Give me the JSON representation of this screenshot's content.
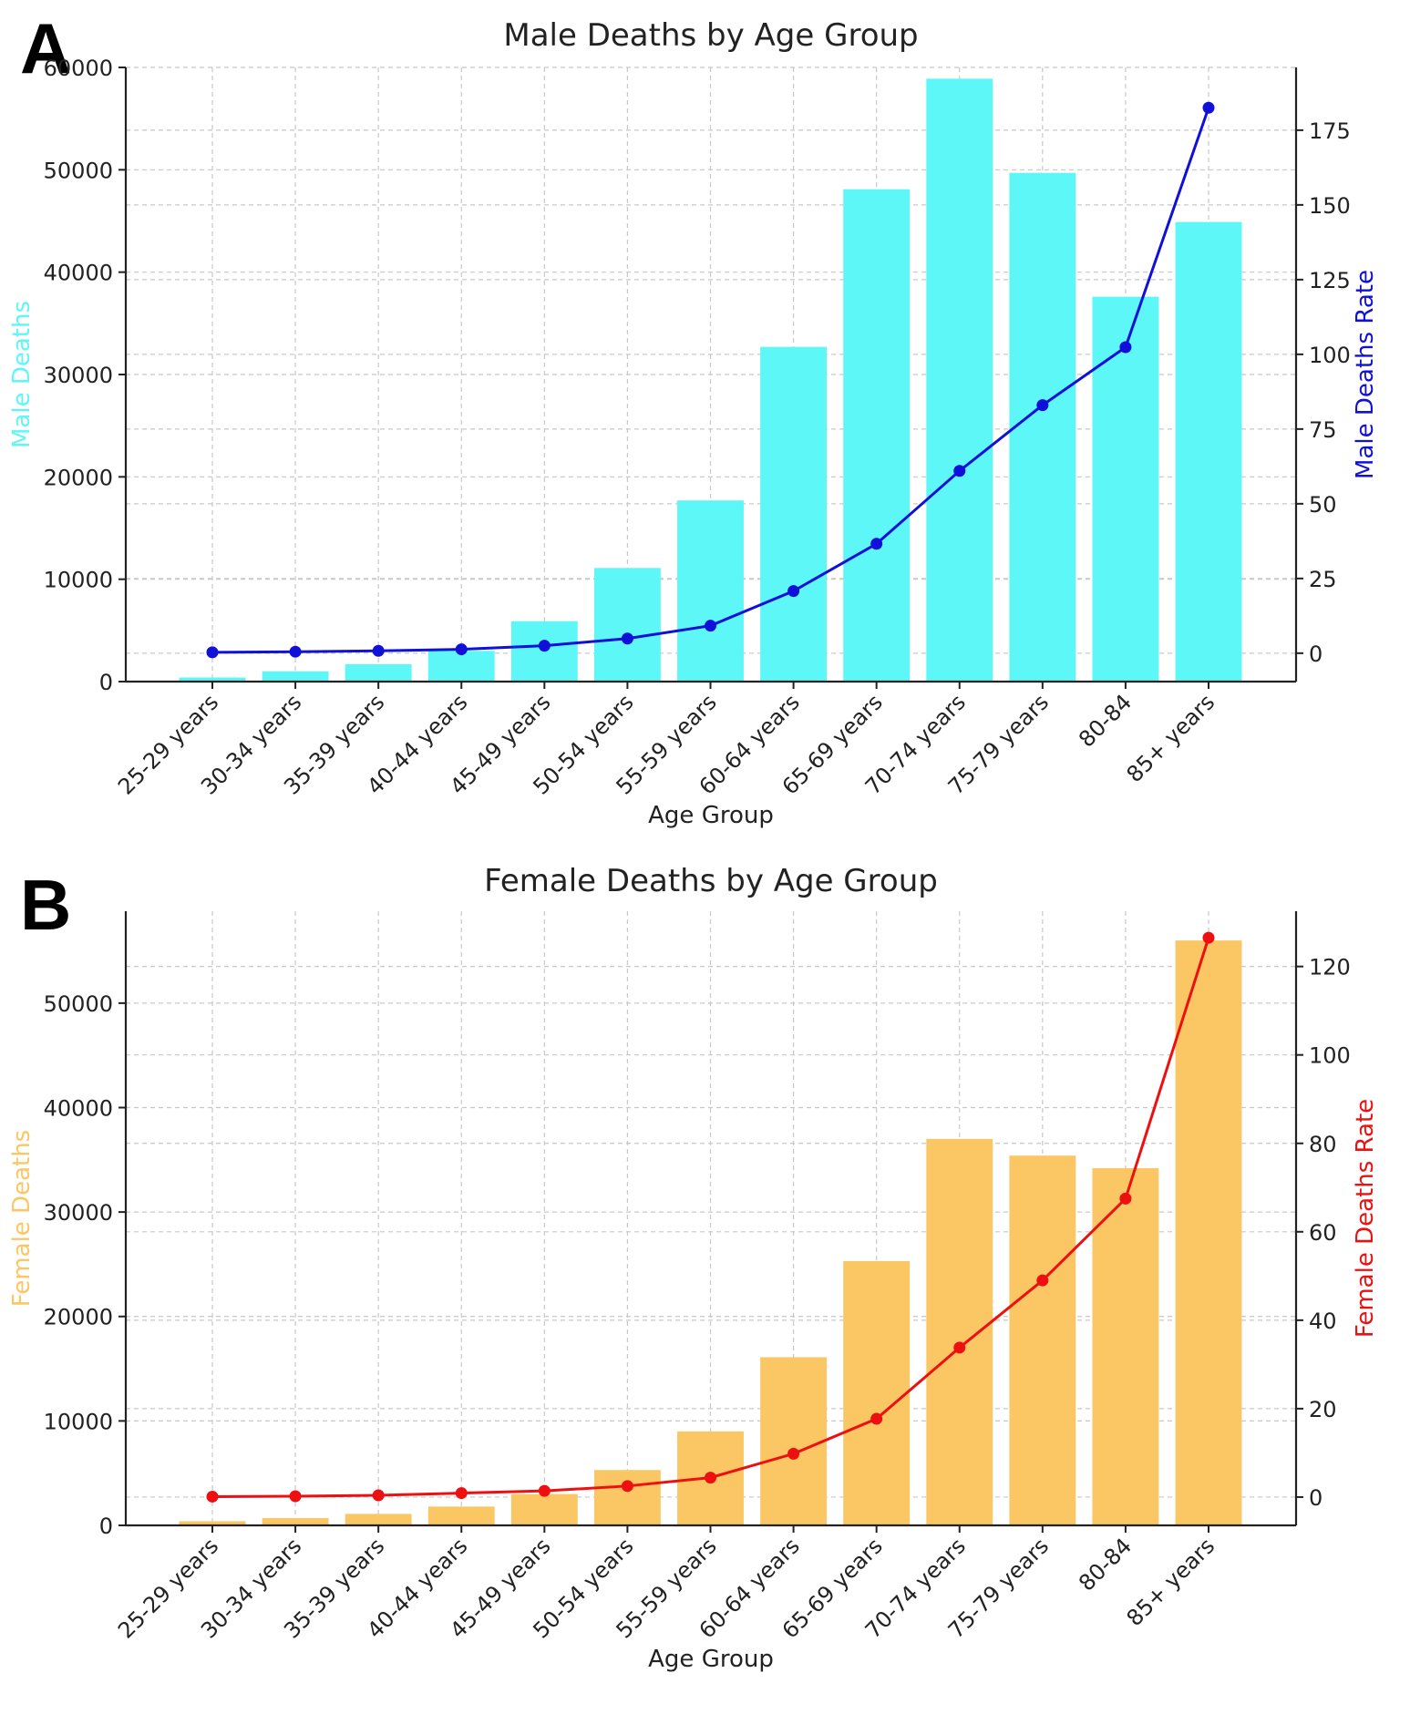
{
  "colors": {
    "male_bar": "#5ef7f7",
    "male_line": "#1010d8",
    "female_bar": "#fbc764",
    "female_line": "#ee1010"
  },
  "chart_data": [
    {
      "panel_label": "A",
      "type": "bar+line",
      "title": "Male Deaths by Age Group",
      "xlabel": "Age Group",
      "ylabel_left": "Male Deaths",
      "ylabel_right": "Male Deaths Rate",
      "categories": [
        "25-29 years",
        "30-34 years",
        "35-39 years",
        "40-44 years",
        "45-49 years",
        "50-54 years",
        "55-59 years",
        "60-64 years",
        "65-69 years",
        "70-74 years",
        "75-79 years",
        "80-84",
        "85+ years"
      ],
      "series": [
        {
          "name": "Male Deaths",
          "type": "bar",
          "axis": "left",
          "values": [
            400,
            1000,
            1700,
            3000,
            5900,
            11100,
            17700,
            32700,
            48100,
            58900,
            49700,
            37600,
            44900
          ]
        },
        {
          "name": "Male Deaths Rate",
          "type": "line",
          "axis": "right",
          "values": [
            0.3,
            0.5,
            0.8,
            1.3,
            2.5,
            4.9,
            9.2,
            20.8,
            36.6,
            61.0,
            83.0,
            102.4,
            182.5
          ]
        }
      ],
      "ylim_left": [
        0,
        60000
      ],
      "yticks_left": [
        0,
        10000,
        20000,
        30000,
        40000,
        50000,
        60000
      ],
      "ylim_right": [
        -9.5,
        196
      ],
      "yticks_right": [
        0,
        25,
        50,
        75,
        100,
        125,
        150,
        175
      ],
      "grid": true
    },
    {
      "panel_label": "B",
      "type": "bar+line",
      "title": "Female Deaths by Age Group",
      "xlabel": "Age Group",
      "ylabel_left": "Female Deaths",
      "ylabel_right": "Female Deaths Rate",
      "categories": [
        "25-29 years",
        "30-34 years",
        "35-39 years",
        "40-44 years",
        "45-49 years",
        "50-54 years",
        "55-59 years",
        "60-64 years",
        "65-69 years",
        "70-74 years",
        "75-79 years",
        "80-84",
        "85+ years"
      ],
      "series": [
        {
          "name": "Female Deaths",
          "type": "bar",
          "axis": "left",
          "values": [
            400,
            700,
            1100,
            1800,
            3000,
            5300,
            9000,
            16100,
            25300,
            37000,
            35400,
            34200,
            56000
          ]
        },
        {
          "name": "Female Deaths Rate",
          "type": "line",
          "axis": "right",
          "values": [
            0.1,
            0.2,
            0.4,
            0.9,
            1.4,
            2.5,
            4.4,
            9.8,
            17.7,
            33.8,
            49.0,
            67.5,
            126.5
          ]
        }
      ],
      "ylim_left": [
        0,
        58800
      ],
      "yticks_left": [
        0,
        10000,
        20000,
        30000,
        40000,
        50000
      ],
      "ylim_right": [
        -6.4,
        132.5
      ],
      "yticks_right": [
        0,
        20,
        40,
        60,
        80,
        100,
        120
      ],
      "grid": true
    }
  ]
}
